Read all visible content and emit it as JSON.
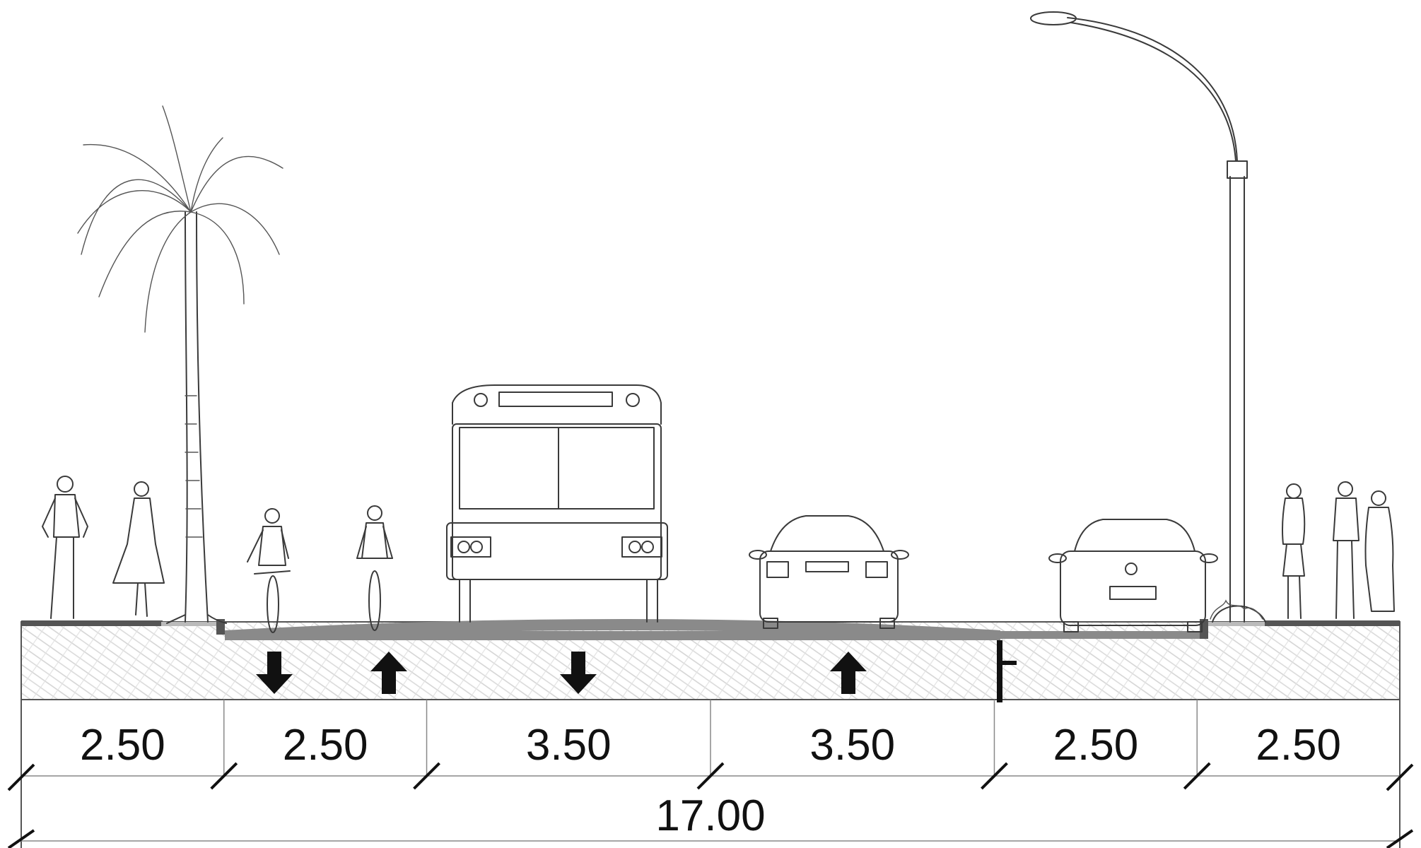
{
  "segments": [
    {
      "label": "2.50"
    },
    {
      "label": "2.50"
    },
    {
      "label": "3.50"
    },
    {
      "label": "3.50"
    },
    {
      "label": "2.50"
    },
    {
      "label": "2.50"
    }
  ],
  "total": {
    "label": "17.00"
  },
  "lane_arrows": [
    {
      "direction": "down"
    },
    {
      "direction": "up"
    },
    {
      "direction": "down"
    },
    {
      "direction": "up"
    }
  ],
  "colors": {
    "line": "#3a3a3a",
    "pavement": "#8a8a8a",
    "curb": "#555555",
    "hatch": "#d4d4d4"
  }
}
